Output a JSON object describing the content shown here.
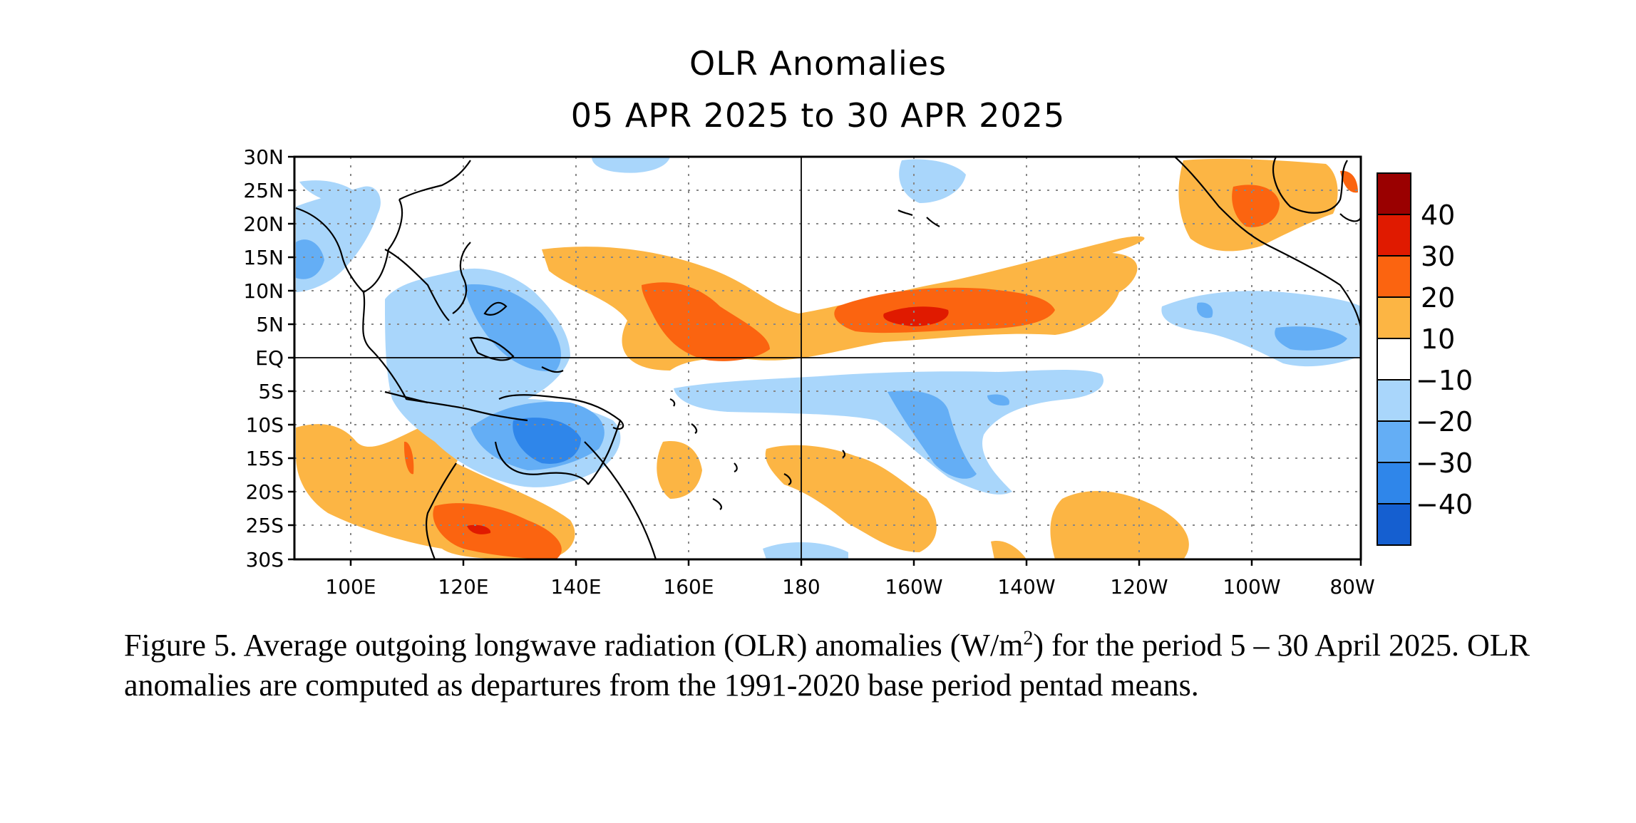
{
  "title": {
    "line1": "OLR Anomalies",
    "line2": "05 APR 2025 to 30 APR 2025"
  },
  "map": {
    "lat_labels": [
      "30N",
      "25N",
      "20N",
      "15N",
      "10N",
      "5N",
      "EQ",
      "5S",
      "10S",
      "15S",
      "20S",
      "25S",
      "30S"
    ],
    "lon_labels": [
      "100E",
      "120E",
      "140E",
      "160E",
      "180",
      "160W",
      "140W",
      "120W",
      "100W",
      "80W"
    ],
    "colorbar": {
      "labels": [
        "40",
        "30",
        "20",
        "10",
        "−10",
        "−20",
        "−30",
        "−40"
      ],
      "colors": [
        "#9a0000",
        "#e01a00",
        "#fb6410",
        "#fcb544",
        "#ffffff",
        "#a9d6fb",
        "#64aef5",
        "#2f86ea",
        "#155fd0"
      ]
    },
    "anomaly_colors": {
      "yellow": "#fcb544",
      "orange": "#fb6410",
      "red": "#e01a00",
      "lightblue": "#a9d6fb",
      "blue": "#64aef5",
      "darkblue": "#2f86ea"
    }
  },
  "caption": {
    "part1": "Figure 5. Average outgoing longwave radiation (OLR) anomalies (W/m",
    "sup": "2",
    "part2": ") for the period 5 – 30 April 2025.  OLR anomalies are computed as departures from the 1991-2020 base period pentad means."
  }
}
